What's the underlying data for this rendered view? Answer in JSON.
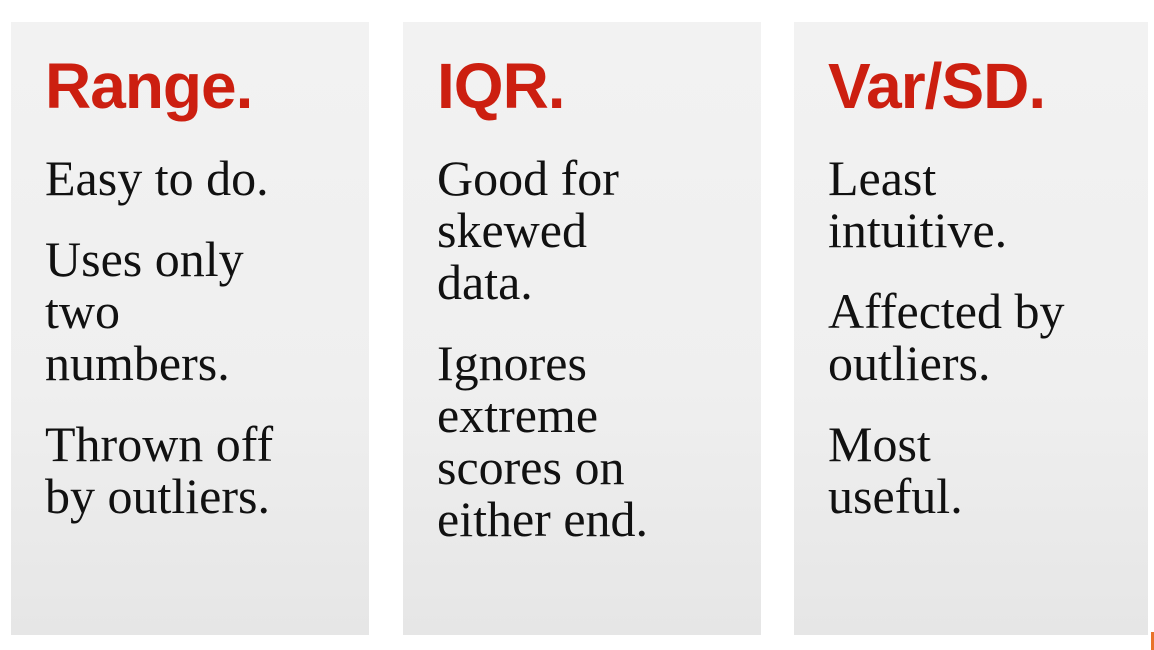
{
  "colors": {
    "title": "#cc1f10",
    "panel": "#f0f0f0",
    "text": "#111111"
  },
  "columns": [
    {
      "title": "Range.",
      "points": [
        "Easy to do.",
        "Uses only\ntwo\nnumbers.",
        "Thrown off\nby outliers."
      ]
    },
    {
      "title": "IQR.",
      "points": [
        "Good for\nskewed\ndata.",
        "Ignores\nextreme\nscores on\neither end."
      ]
    },
    {
      "title": "Var/SD.",
      "points": [
        "Least\nintuitive.",
        "Affected by\noutliers.",
        "Most\nuseful."
      ]
    }
  ]
}
